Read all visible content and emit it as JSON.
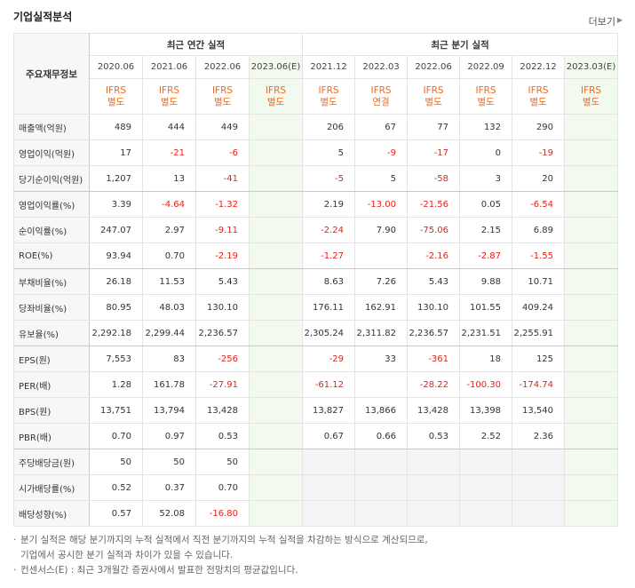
{
  "header": {
    "title": "기업실적분석",
    "more": "더보기"
  },
  "table": {
    "corner": "주요재무정보",
    "groups": [
      {
        "label": "최근 연간 실적",
        "span": 4
      },
      {
        "label": "최근 분기 실적",
        "span": 6
      }
    ],
    "periods": [
      "2020.06",
      "2021.06",
      "2022.06",
      "2023.06(E)",
      "2021.12",
      "2022.03",
      "2022.06",
      "2022.09",
      "2022.12",
      "2023.03(E)"
    ],
    "estimated": [
      false,
      false,
      false,
      true,
      false,
      false,
      false,
      false,
      false,
      true
    ],
    "standards": [
      {
        "standard": "IFRS",
        "scope": "별도"
      },
      {
        "standard": "IFRS",
        "scope": "별도"
      },
      {
        "standard": "IFRS",
        "scope": "별도"
      },
      {
        "standard": "IFRS",
        "scope": "별도"
      },
      {
        "standard": "IFRS",
        "scope": "별도"
      },
      {
        "standard": "IFRS",
        "scope": "연결"
      },
      {
        "standard": "IFRS",
        "scope": "별도"
      },
      {
        "standard": "IFRS",
        "scope": "별도"
      },
      {
        "standard": "IFRS",
        "scope": "별도"
      },
      {
        "standard": "IFRS",
        "scope": "별도"
      }
    ],
    "rows": [
      {
        "label": "매출액(억원)",
        "cells": [
          "489",
          "444",
          "449",
          null,
          "206",
          "67",
          "77",
          "132",
          "290",
          null
        ]
      },
      {
        "label": "영업이익(억원)",
        "cells": [
          "17",
          "-21",
          "-6",
          null,
          "5",
          "-9",
          "-17",
          "0",
          "-19",
          null
        ]
      },
      {
        "label": "당기순이익(억원)",
        "cells": [
          "1,207",
          "13",
          "-41",
          null,
          "-5",
          "5",
          "-58",
          "3",
          "20",
          null
        ],
        "group_end": true
      },
      {
        "label": "영업이익률(%)",
        "cells": [
          "3.39",
          "-4.64",
          "-1.32",
          null,
          "2.19",
          "-13.00",
          "-21.56",
          "0.05",
          "-6.54",
          null
        ]
      },
      {
        "label": "순이익률(%)",
        "cells": [
          "247.07",
          "2.97",
          "-9.11",
          null,
          "-2.24",
          "7.90",
          "-75.06",
          "2.15",
          "6.89",
          null
        ]
      },
      {
        "label": "ROE(%)",
        "cells": [
          "93.94",
          "0.70",
          "-2.19",
          null,
          "-1.27",
          null,
          "-2.16",
          "-2.87",
          "-1.55",
          null
        ],
        "group_end": true
      },
      {
        "label": "부채비율(%)",
        "cells": [
          "26.18",
          "11.53",
          "5.43",
          null,
          "8.63",
          "7.26",
          "5.43",
          "9.88",
          "10.71",
          null
        ]
      },
      {
        "label": "당좌비율(%)",
        "cells": [
          "80.95",
          "48.03",
          "130.10",
          null,
          "176.11",
          "162.91",
          "130.10",
          "101.55",
          "409.24",
          null
        ]
      },
      {
        "label": "유보율(%)",
        "cells": [
          "2,292.18",
          "2,299.44",
          "2,236.57",
          null,
          "2,305.24",
          "2,311.82",
          "2,236.57",
          "2,231.51",
          "2,255.91",
          null
        ],
        "group_end": true
      },
      {
        "label": "EPS(원)",
        "cells": [
          "7,553",
          "83",
          "-256",
          null,
          "-29",
          "33",
          "-361",
          "18",
          "125",
          null
        ]
      },
      {
        "label": "PER(배)",
        "cells": [
          "1.28",
          "161.78",
          "-27.91",
          null,
          "-61.12",
          null,
          "-28.22",
          "-100.30",
          "-174.74",
          null
        ]
      },
      {
        "label": "BPS(원)",
        "cells": [
          "13,751",
          "13,794",
          "13,428",
          null,
          "13,827",
          "13,866",
          "13,428",
          "13,398",
          "13,540",
          null
        ]
      },
      {
        "label": "PBR(배)",
        "cells": [
          "0.70",
          "0.97",
          "0.53",
          null,
          "0.67",
          "0.66",
          "0.53",
          "2.52",
          "2.36",
          null
        ],
        "group_end": true
      },
      {
        "label": "주당배당금(원)",
        "cells": [
          "50",
          "50",
          "50",
          null,
          null,
          null,
          null,
          null,
          null,
          null
        ]
      },
      {
        "label": "시가배당률(%)",
        "cells": [
          "0.52",
          "0.37",
          "0.70",
          null,
          null,
          null,
          null,
          null,
          null,
          null
        ]
      },
      {
        "label": "배당성향(%)",
        "cells": [
          "0.57",
          "52.08",
          "-16.80",
          null,
          null,
          null,
          null,
          null,
          null,
          null
        ]
      }
    ]
  },
  "notes": [
    {
      "lines": [
        "분기 실적은 해당 분기까지의 누적 실적에서 직전 분기까지의 누적 실적을 차감하는 방식으로 계산되므로,",
        "기업에서 공시한 분기 실적과 차이가 있을 수 있습니다."
      ]
    },
    {
      "lines": [
        "컨센서스(E) : 최근 3개월간 증권사에서 발표한 전망치의 평균값입니다."
      ]
    }
  ]
}
